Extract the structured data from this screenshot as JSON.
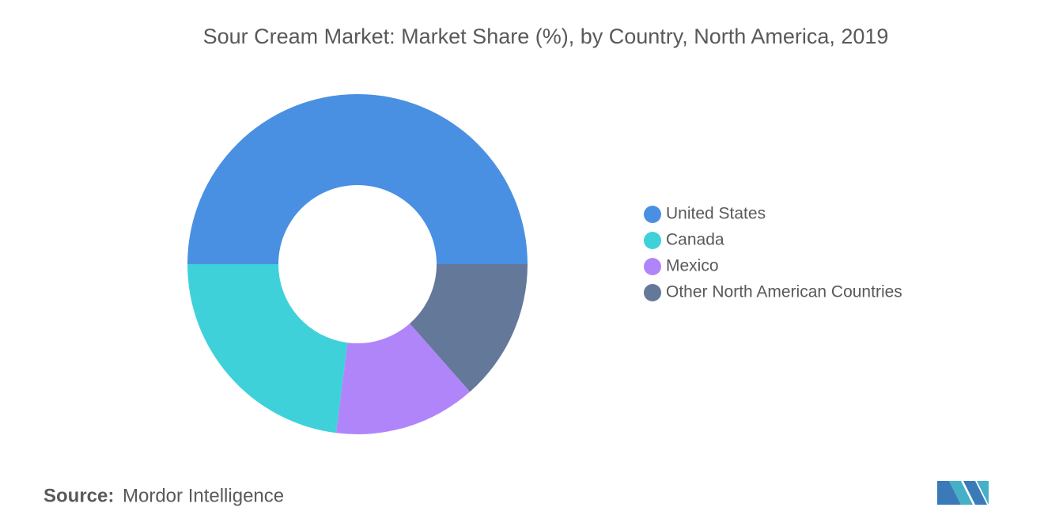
{
  "chart_data": {
    "type": "donut",
    "title": "Sour Cream Market: Market Share (%), by Country, North America, 2019",
    "categories": [
      "United States",
      "Canada",
      "Mexico",
      "Other North American Countries"
    ],
    "values": [
      50,
      23,
      13.5,
      13.5
    ],
    "colors": [
      "#4a90e2",
      "#3fd1da",
      "#b085fa",
      "#647899"
    ],
    "legend": "right"
  },
  "source": {
    "label": "Source:",
    "text": "Mordor Intelligence"
  }
}
